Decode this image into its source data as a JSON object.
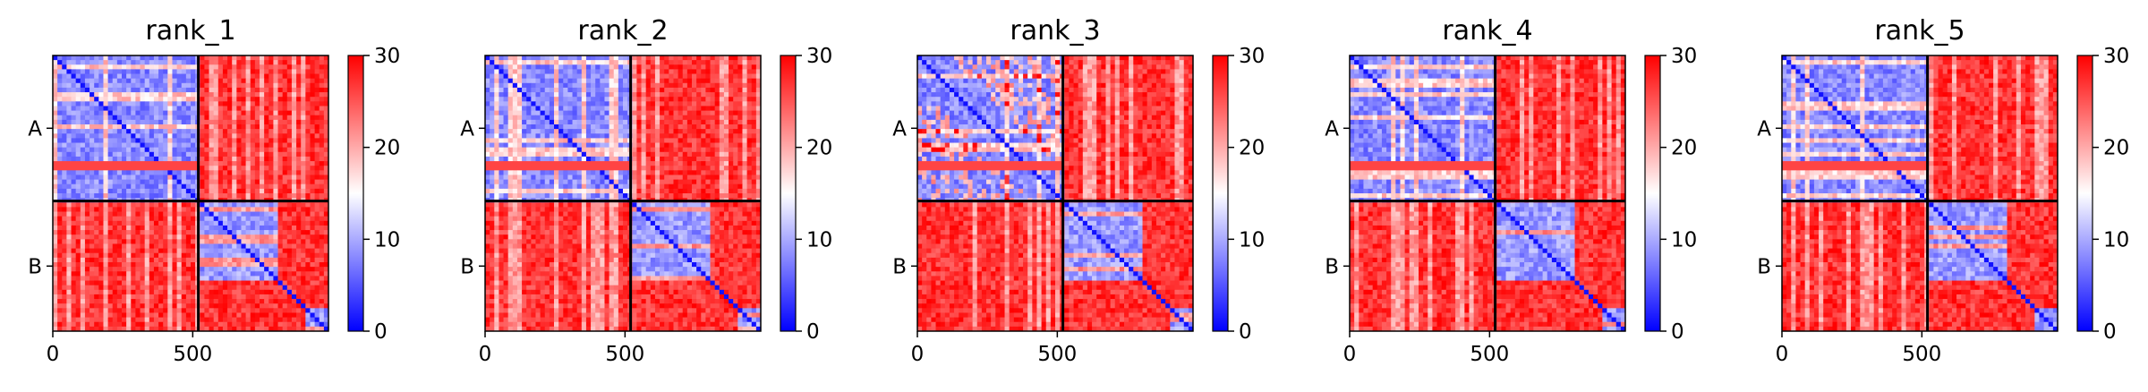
{
  "chart_data": [
    {
      "type": "heatmap",
      "title": "rank_1",
      "chain_labels": [
        "A",
        "B"
      ],
      "chain_boundary": 520,
      "x_ticks": [
        0,
        500
      ],
      "xlim": [
        0,
        985
      ],
      "colorbar": {
        "min": 0,
        "max": 30,
        "ticks": [
          0,
          10,
          20,
          30
        ],
        "colormap": "bwr"
      },
      "intra_A_offdiag": "mostly_blue",
      "inter_chain": "red"
    },
    {
      "type": "heatmap",
      "title": "rank_2",
      "chain_labels": [
        "A",
        "B"
      ],
      "chain_boundary": 520,
      "x_ticks": [
        0,
        500
      ],
      "xlim": [
        0,
        985
      ],
      "colorbar": {
        "min": 0,
        "max": 30,
        "ticks": [
          0,
          10,
          20,
          30
        ],
        "colormap": "bwr"
      },
      "intra_A_offdiag": "mostly_blue",
      "inter_chain": "red"
    },
    {
      "type": "heatmap",
      "title": "rank_3",
      "chain_labels": [
        "A",
        "B"
      ],
      "chain_boundary": 520,
      "x_ticks": [
        0,
        500
      ],
      "xlim": [
        0,
        985
      ],
      "colorbar": {
        "min": 0,
        "max": 30,
        "ticks": [
          0,
          10,
          20,
          30
        ],
        "colormap": "bwr"
      },
      "intra_A_offdiag": "mixed",
      "inter_chain": "red"
    },
    {
      "type": "heatmap",
      "title": "rank_4",
      "chain_labels": [
        "A",
        "B"
      ],
      "chain_boundary": 520,
      "x_ticks": [
        0,
        500
      ],
      "xlim": [
        0,
        985
      ],
      "colorbar": {
        "min": 0,
        "max": 30,
        "ticks": [
          0,
          10,
          20,
          30
        ],
        "colormap": "bwr"
      },
      "intra_A_offdiag": "mostly_blue",
      "inter_chain": "red"
    },
    {
      "type": "heatmap",
      "title": "rank_5",
      "chain_labels": [
        "A",
        "B"
      ],
      "chain_boundary": 520,
      "x_ticks": [
        0,
        500
      ],
      "xlim": [
        0,
        985
      ],
      "colorbar": {
        "min": 0,
        "max": 30,
        "ticks": [
          0,
          10,
          20,
          30
        ],
        "colormap": "bwr"
      },
      "intra_A_offdiag": "mostly_blue",
      "inter_chain": "red"
    }
  ],
  "colors": {
    "low": "#0000ff",
    "mid": "#ffffff",
    "high": "#ff0000"
  }
}
